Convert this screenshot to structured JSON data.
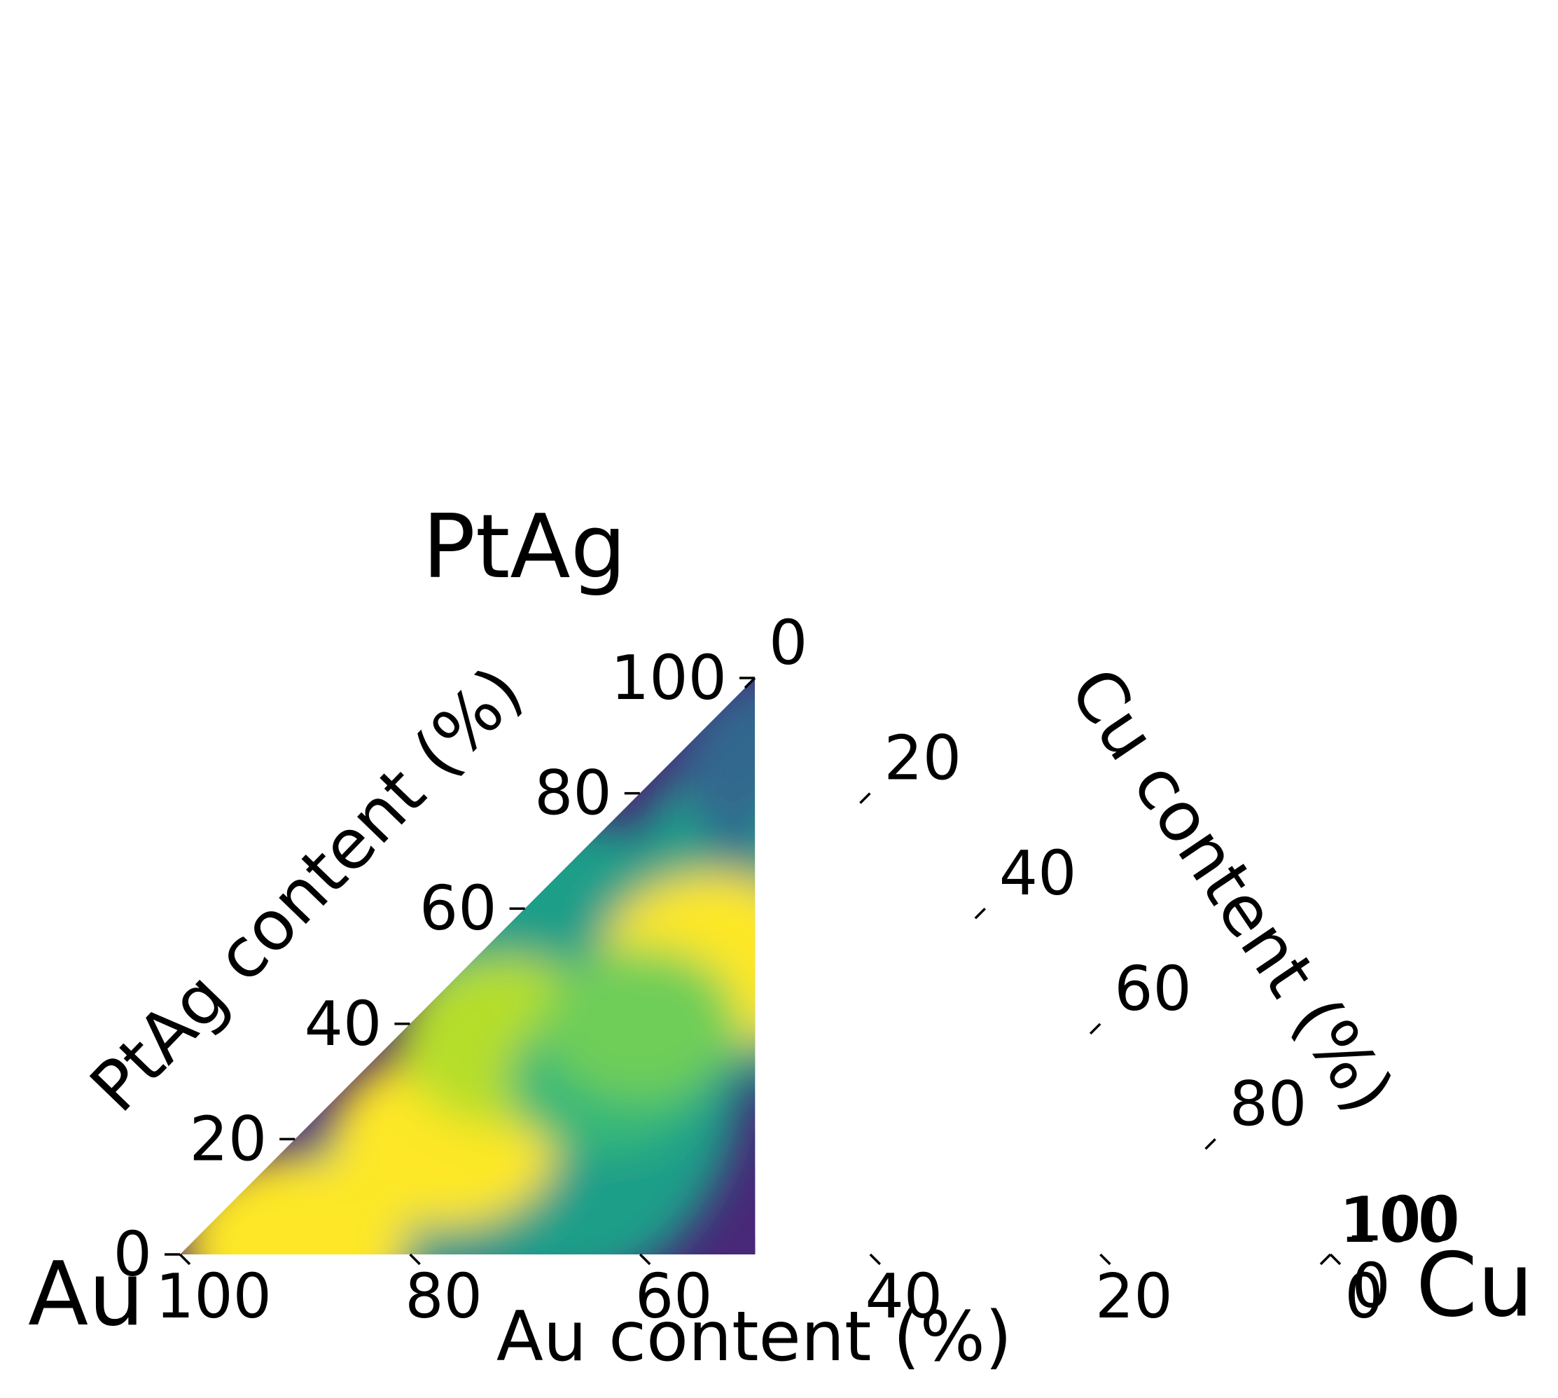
{
  "chart_data": {
    "type": "heatmap",
    "subtype": "ternary-filled-contour",
    "colormap": "viridis",
    "colormap_stops": [
      "#440154",
      "#482878",
      "#3e4989",
      "#31688e",
      "#26828e",
      "#1f9e89",
      "#35b779",
      "#6ece58",
      "#b5de2b",
      "#fde725"
    ],
    "vertices": {
      "bottom_left": "Au",
      "top": "PtAg",
      "bottom_right": "Cu"
    },
    "axes": {
      "au": {
        "title": "Au content (%)",
        "ticks": [
          "100",
          "80",
          "60",
          "40",
          "20",
          "0"
        ]
      },
      "ptag": {
        "title": "PtAg content (%)",
        "ticks": [
          "0",
          "20",
          "40",
          "60",
          "80",
          "100"
        ]
      },
      "cu": {
        "title": "Cu content (%)",
        "ticks": [
          "0",
          "20",
          "40",
          "60",
          "80",
          "100"
        ]
      }
    },
    "extra_tick_labels": [
      "100",
      "0"
    ],
    "data_region": {
      "description": "filled region spans Au 100-50%, Cu 0-50%",
      "corners_ptag_cu": [
        [
          0,
          0
        ],
        [
          100,
          0
        ],
        [
          0,
          50
        ]
      ]
    },
    "hotspots": [
      {
        "ptag": 51,
        "cu": 21,
        "level": 0.97
      },
      {
        "ptag": 20,
        "cu": 13,
        "level": 0.98
      },
      {
        "ptag": 37,
        "cu": 10,
        "level": 0.92
      },
      {
        "ptag": 2,
        "cu": 9,
        "level": 0.95
      },
      {
        "ptag": 70,
        "cu": 22,
        "level": 0.5
      },
      {
        "ptag": 30,
        "cu": 22,
        "level": 0.72
      },
      {
        "ptag": 40,
        "cu": 20,
        "level": 0.76
      }
    ],
    "grid": false,
    "legend": "none"
  }
}
